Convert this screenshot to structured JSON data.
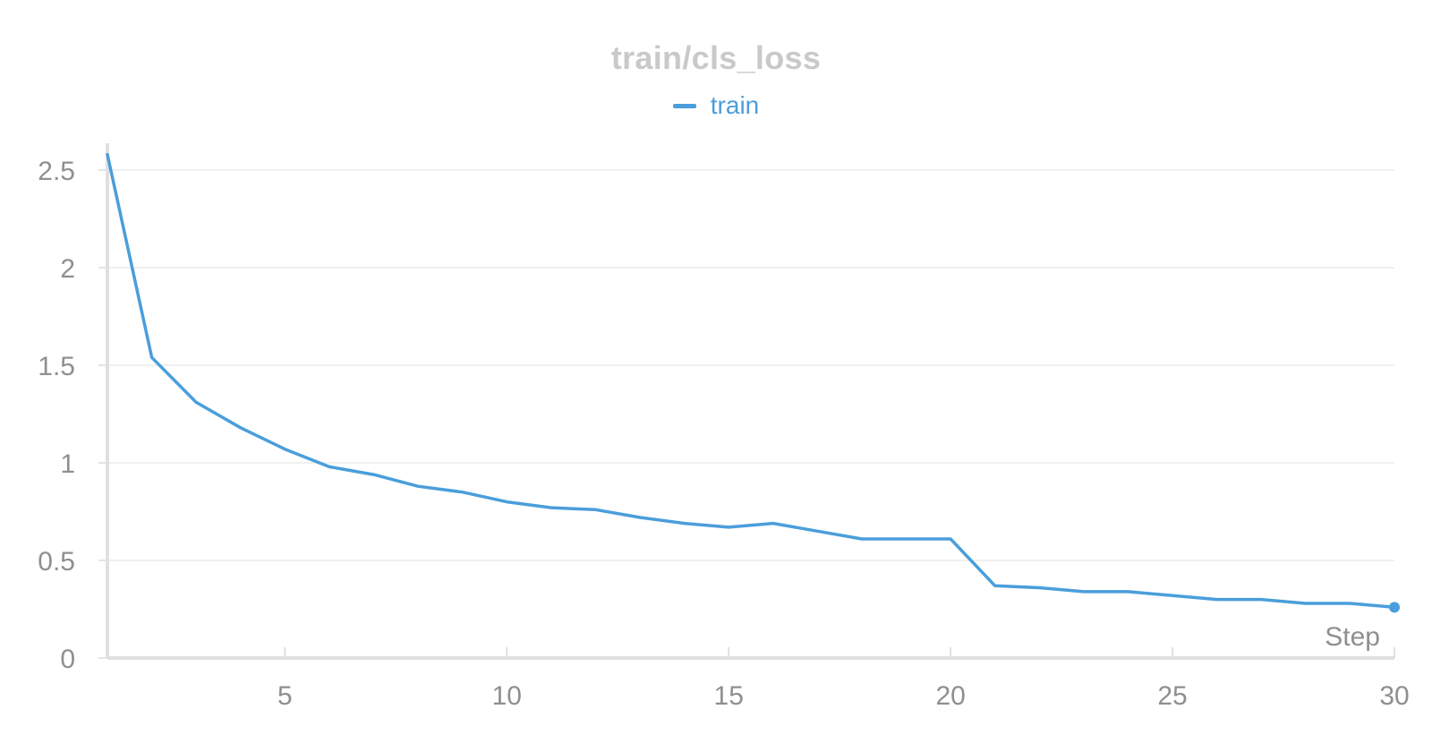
{
  "chart_data": {
    "type": "line",
    "title": "train/cls_loss",
    "xlabel": "Step",
    "ylabel": "",
    "xlim": [
      1,
      30
    ],
    "ylim": [
      0,
      2.6
    ],
    "x_ticks": [
      5,
      10,
      15,
      20,
      25,
      30
    ],
    "y_ticks": [
      0,
      0.5,
      1,
      1.5,
      2,
      2.5
    ],
    "x_tick_labels": [
      "5",
      "10",
      "15",
      "20",
      "25",
      "30"
    ],
    "y_tick_labels": [
      "0",
      "0.5",
      "1",
      "1.5",
      "2",
      "2.5"
    ],
    "grid": true,
    "legend_position": "top-center",
    "x": [
      1,
      2,
      3,
      4,
      5,
      6,
      7,
      8,
      9,
      10,
      11,
      12,
      13,
      14,
      15,
      16,
      17,
      18,
      19,
      20,
      21,
      22,
      23,
      24,
      25,
      26,
      27,
      28,
      29,
      30
    ],
    "series": [
      {
        "name": "train",
        "color": "#4a9edb",
        "values": [
          2.58,
          1.54,
          1.31,
          1.18,
          1.07,
          0.98,
          0.94,
          0.88,
          0.85,
          0.8,
          0.77,
          0.76,
          0.72,
          0.69,
          0.67,
          0.69,
          0.65,
          0.61,
          0.61,
          0.61,
          0.37,
          0.36,
          0.34,
          0.34,
          0.32,
          0.3,
          0.3,
          0.28,
          0.28,
          0.26
        ]
      }
    ]
  }
}
